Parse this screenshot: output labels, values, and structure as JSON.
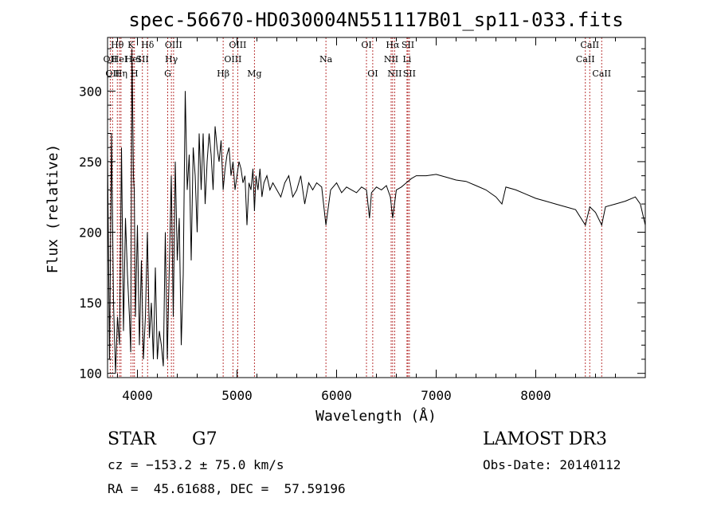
{
  "chart_data": {
    "type": "line",
    "title": "spec-56670-HD030004N551117B01_sp11-033.fits",
    "xlabel": "Wavelength (Å)",
    "ylabel": "Flux (relative)",
    "xlim": [
      3700,
      9100
    ],
    "ylim": [
      97,
      338
    ],
    "xticks": [
      4000,
      5000,
      6000,
      7000,
      8000
    ],
    "yticks": [
      100,
      150,
      200,
      250,
      300
    ],
    "series": [
      {
        "x": [
          3700,
          3720,
          3740,
          3760,
          3780,
          3800,
          3820,
          3840,
          3860,
          3880,
          3900,
          3920,
          3933,
          3945,
          3960,
          3968,
          3980,
          4000,
          4020,
          4040,
          4060,
          4080,
          4100,
          4120,
          4140,
          4160,
          4180,
          4200,
          4220,
          4240,
          4260,
          4280,
          4300,
          4320,
          4340,
          4360,
          4380,
          4400,
          4420,
          4440,
          4460,
          4480,
          4500,
          4520,
          4540,
          4560,
          4580,
          4600,
          4620,
          4640,
          4660,
          4680,
          4700,
          4720,
          4740,
          4760,
          4780,
          4800,
          4820,
          4840,
          4861,
          4880,
          4900,
          4920,
          4940,
          4960,
          4980,
          5000,
          5020,
          5040,
          5060,
          5080,
          5100,
          5120,
          5140,
          5160,
          5175,
          5190,
          5210,
          5230,
          5250,
          5270,
          5300,
          5330,
          5360,
          5400,
          5440,
          5480,
          5520,
          5560,
          5600,
          5640,
          5680,
          5720,
          5760,
          5800,
          5850,
          5893,
          5940,
          6000,
          6050,
          6100,
          6150,
          6200,
          6250,
          6300,
          6330,
          6350,
          6400,
          6450,
          6500,
          6540,
          6563,
          6600,
          6650,
          6700,
          6750,
          6800,
          6900,
          7000,
          7100,
          7200,
          7300,
          7400,
          7500,
          7600,
          7660,
          7700,
          7800,
          7900,
          8000,
          8100,
          8200,
          8300,
          8400,
          8498,
          8542,
          8600,
          8662,
          8700,
          8800,
          8900,
          9000,
          9050,
          9100
        ],
        "y": [
          255,
          110,
          270,
          150,
          100,
          140,
          120,
          260,
          130,
          210,
          170,
          140,
          115,
          330,
          240,
          230,
          140,
          205,
          120,
          180,
          110,
          140,
          200,
          125,
          150,
          110,
          175,
          110,
          130,
          120,
          105,
          200,
          110,
          175,
          240,
          140,
          250,
          180,
          210,
          120,
          170,
          300,
          230,
          255,
          180,
          260,
          240,
          200,
          270,
          230,
          270,
          220,
          250,
          270,
          255,
          230,
          275,
          260,
          250,
          265,
          230,
          245,
          255,
          260,
          240,
          250,
          230,
          240,
          250,
          245,
          235,
          240,
          205,
          235,
          230,
          245,
          215,
          240,
          230,
          245,
          225,
          235,
          240,
          230,
          235,
          230,
          225,
          235,
          240,
          225,
          230,
          240,
          220,
          235,
          230,
          235,
          232,
          205,
          230,
          235,
          228,
          232,
          230,
          228,
          232,
          230,
          210,
          228,
          232,
          230,
          233,
          225,
          210,
          230,
          232,
          235,
          238,
          240,
          240,
          241,
          239,
          237,
          236,
          233,
          230,
          225,
          220,
          232,
          230,
          227,
          224,
          222,
          220,
          218,
          216,
          205,
          218,
          214,
          205,
          218,
          220,
          222,
          225,
          220,
          205
        ]
      }
    ],
    "line_labels": [
      {
        "wavelength": 3727,
        "label": "OII",
        "row": 2
      },
      {
        "wavelength": 3750,
        "label": "OII",
        "row": 3
      },
      {
        "wavelength": 3798,
        "label": "Hθ",
        "row": 1
      },
      {
        "wavelength": 3820,
        "label": "HeI",
        "row": 2
      },
      {
        "wavelength": 3835,
        "label": "Hη",
        "row": 3
      },
      {
        "wavelength": 3934,
        "label": "K",
        "row": 1
      },
      {
        "wavelength": 3955,
        "label": "HeI",
        "row": 2
      },
      {
        "wavelength": 3970,
        "label": "H",
        "row": 3
      },
      {
        "wavelength": 4050,
        "label": "SII",
        "row": 2
      },
      {
        "wavelength": 4102,
        "label": "Hδ",
        "row": 1
      },
      {
        "wavelength": 4304,
        "label": "G",
        "row": 3
      },
      {
        "wavelength": 4341,
        "label": "Hγ",
        "row": 2
      },
      {
        "wavelength": 4363,
        "label": "OIII",
        "row": 1
      },
      {
        "wavelength": 4861,
        "label": "Hβ",
        "row": 3
      },
      {
        "wavelength": 4959,
        "label": "OIII",
        "row": 2
      },
      {
        "wavelength": 5007,
        "label": "OIII",
        "row": 1
      },
      {
        "wavelength": 5175,
        "label": "Mg",
        "row": 3
      },
      {
        "wavelength": 5893,
        "label": "Na",
        "row": 2
      },
      {
        "wavelength": 6300,
        "label": "OI",
        "row": 1
      },
      {
        "wavelength": 6363,
        "label": "OI",
        "row": 3
      },
      {
        "wavelength": 6548,
        "label": "NII",
        "row": 2
      },
      {
        "wavelength": 6563,
        "label": "Hα",
        "row": 1
      },
      {
        "wavelength": 6583,
        "label": "NII",
        "row": 3
      },
      {
        "wavelength": 6707,
        "label": "Li",
        "row": 2
      },
      {
        "wavelength": 6716,
        "label": "SII",
        "row": 1
      },
      {
        "wavelength": 6731,
        "label": "SII",
        "row": 3
      },
      {
        "wavelength": 8498,
        "label": "CaII",
        "row": 2
      },
      {
        "wavelength": 8542,
        "label": "CaII",
        "row": 1
      },
      {
        "wavelength": 8662,
        "label": "CaII",
        "row": 3
      }
    ],
    "grid": false,
    "line_color": "#000000",
    "marker_line_color": "#b22222"
  },
  "footer": {
    "object_type": "STAR",
    "subclass": "G7",
    "survey": "LAMOST DR3",
    "redshift": "cz = −153.2 ± 75.0 km/s",
    "obs_date": "Obs-Date: 20140112",
    "coords": "RA =  45.61688, DEC =  57.59196"
  }
}
